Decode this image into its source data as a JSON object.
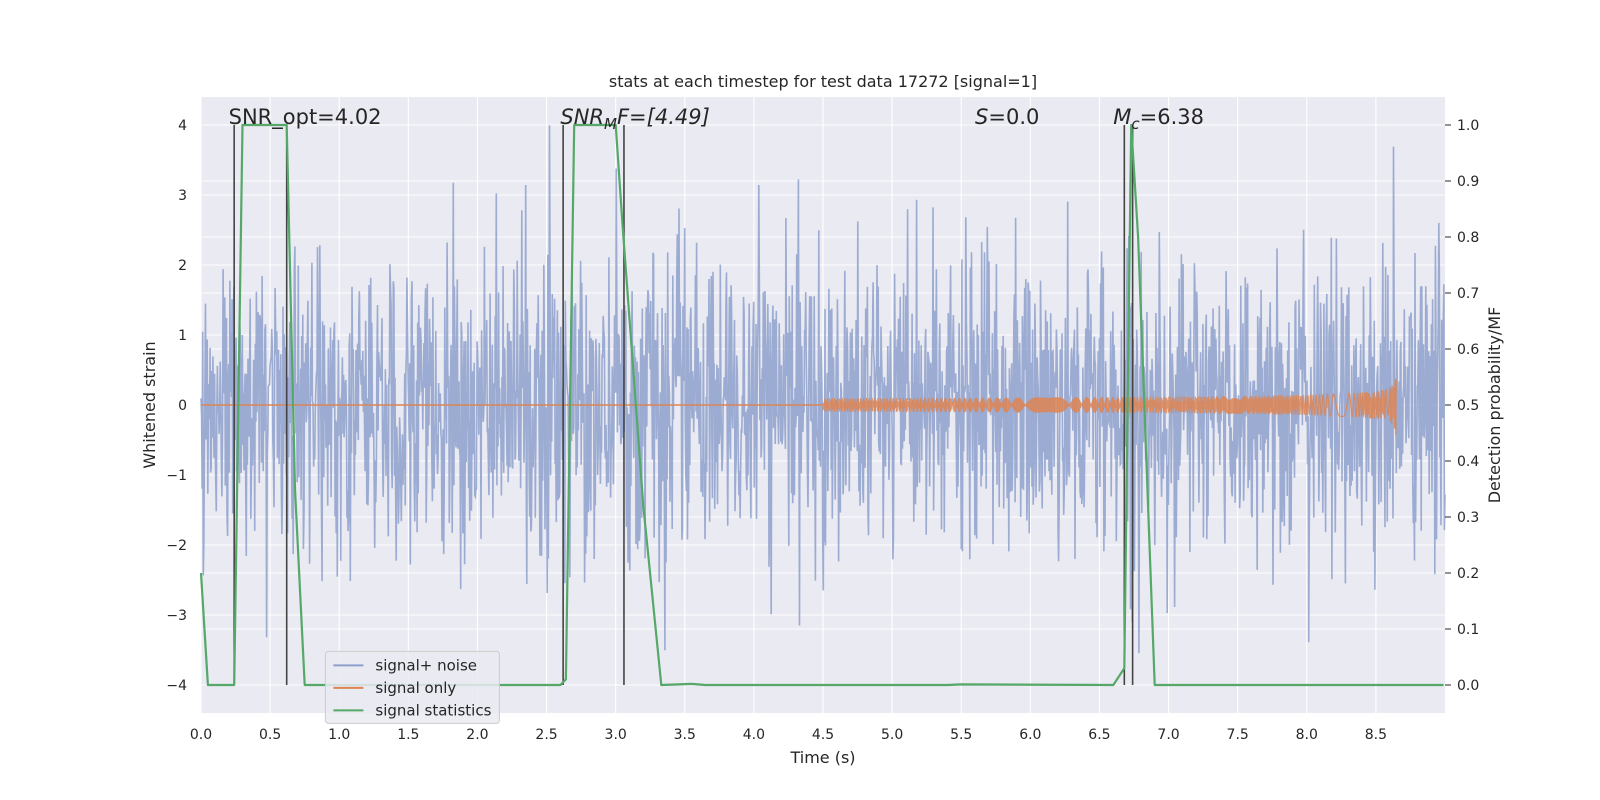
{
  "chart_data": {
    "type": "line",
    "title": "stats at each timestep for test data 17272 [signal=1]",
    "xlabel": "Time (s)",
    "ylabel_left": "Whitened strain",
    "ylabel_right": "Detection probability/MF",
    "xlim": [
      0.0,
      9.0
    ],
    "ylim_left": [
      -4.4,
      4.4
    ],
    "ylim_right": [
      -0.05,
      1.05
    ],
    "x_ticks": [
      "0.0",
      "0.5",
      "1.0",
      "1.5",
      "2.0",
      "2.5",
      "3.0",
      "3.5",
      "4.0",
      "4.5",
      "5.0",
      "5.5",
      "6.0",
      "6.5",
      "7.0",
      "7.5",
      "8.0",
      "8.5"
    ],
    "y_ticks_left": [
      "4",
      "3",
      "2",
      "1",
      "0",
      "−1",
      "−2",
      "−3",
      "−4"
    ],
    "y_ticks_right": [
      "1.0",
      "0.9",
      "0.8",
      "0.7",
      "0.6",
      "0.5",
      "0.4",
      "0.3",
      "0.2",
      "0.1",
      "0.0"
    ],
    "grid": true,
    "colors": {
      "noise": "#8da0cb",
      "signal": "#dd8452",
      "stats": "#55a868",
      "marker": "#444444",
      "background": "#eaeaf2"
    },
    "annotations": [
      {
        "text": "SNR_opt=4.02",
        "x": 0.2
      },
      {
        "text": "SNR_MF=[4.49]",
        "x": 2.6
      },
      {
        "text": "S=0.0",
        "x": 5.6
      },
      {
        "text": "M_c=6.38",
        "x": 6.6
      }
    ],
    "annotation_text": {
      "snr_opt": "SNR_opt=4.02",
      "snr_mf_base": "SNR",
      "snr_mf_sub": "M",
      "snr_mf_rest": "F=[4.49]",
      "s_var": "S",
      "s_rest": "=0.0",
      "mc_var": "M",
      "mc_sub": "c",
      "mc_rest": "=6.38"
    },
    "series": [
      {
        "name": "signal+ noise",
        "kind": "strain noise, roughly gaussian with std ~1, max ~4.0, min ~-3.7",
        "amplitude_std": 1.0
      },
      {
        "name": "signal only",
        "kind": "chirp",
        "start_s": 4.5,
        "end_s": 8.65,
        "peak_amplitude": 0.5
      },
      {
        "name": "signal statistics",
        "x": [
          0.0,
          0.05,
          0.24,
          0.3,
          0.62,
          0.68,
          0.75,
          2.6,
          2.64,
          2.7,
          3.0,
          3.05,
          3.2,
          3.33,
          3.55,
          3.65,
          5.4,
          5.5,
          6.6,
          6.68,
          6.73,
          6.78,
          6.9,
          8.99
        ],
        "y": [
          0.2,
          0.0,
          0.0,
          1.0,
          1.0,
          0.35,
          0.0,
          0.0,
          0.01,
          1.0,
          1.0,
          0.82,
          0.32,
          0.0,
          0.002,
          0.0,
          0.0,
          0.001,
          0.0,
          0.03,
          1.0,
          0.8,
          0.0,
          0.0
        ]
      }
    ],
    "markers_x": [
      0.24,
      0.62,
      2.62,
      3.06,
      6.68,
      6.74
    ],
    "legend": {
      "position": "lower-left",
      "entries": [
        "signal+ noise",
        "signal only",
        "signal statistics"
      ]
    }
  }
}
